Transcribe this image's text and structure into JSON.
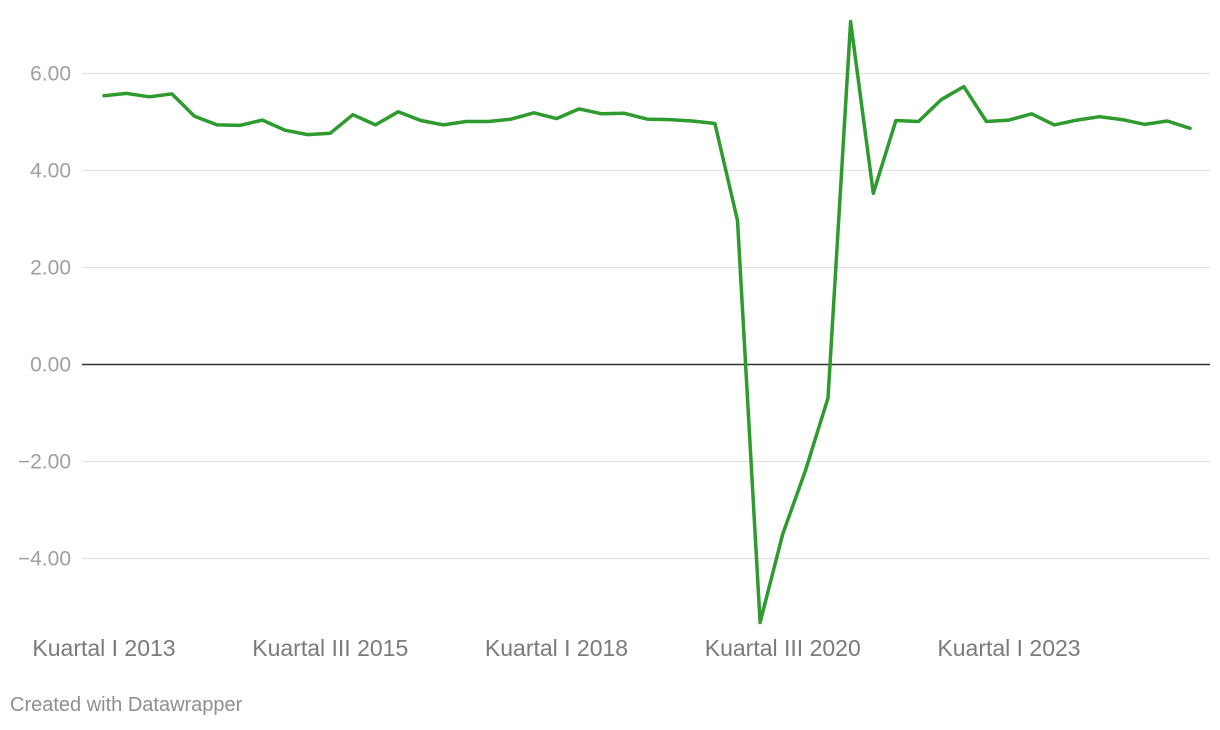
{
  "chart_data": {
    "type": "line",
    "title": "",
    "xlabel": "",
    "ylabel": "",
    "ylim": [
      -5.5,
      7.2
    ],
    "y_ticks": [
      6,
      4,
      2,
      0,
      -2,
      -4
    ],
    "y_tick_labels": [
      "6.00",
      "4.00",
      "2.00",
      "0.00",
      "−2.00",
      "−4.00"
    ],
    "x_tick_labels": [
      {
        "label": "Kuartal I 2013",
        "index": 0
      },
      {
        "label": "Kuartal III 2015",
        "index": 10
      },
      {
        "label": "Kuartal I 2018",
        "index": 20
      },
      {
        "label": "Kuartal III 2020",
        "index": 30
      },
      {
        "label": "Kuartal I 2023",
        "index": 40
      }
    ],
    "grid": true,
    "zero_line": true,
    "series": [
      {
        "color": "#2e9b2e",
        "values": [
          5.54,
          5.59,
          5.52,
          5.58,
          5.12,
          4.94,
          4.93,
          5.04,
          4.83,
          4.74,
          4.77,
          5.15,
          4.94,
          5.21,
          5.03,
          4.94,
          5.01,
          5.01,
          5.06,
          5.19,
          5.07,
          5.27,
          5.17,
          5.18,
          5.06,
          5.05,
          5.02,
          4.97,
          2.97,
          -5.32,
          -3.49,
          -2.19,
          -0.69,
          7.07,
          3.53,
          5.03,
          5.01,
          5.46,
          5.73,
          5.01,
          5.04,
          5.17,
          4.94,
          5.04,
          5.11,
          5.05,
          4.95,
          5.02,
          4.87
        ]
      }
    ]
  },
  "footer": {
    "credit": "Created with Datawrapper"
  }
}
